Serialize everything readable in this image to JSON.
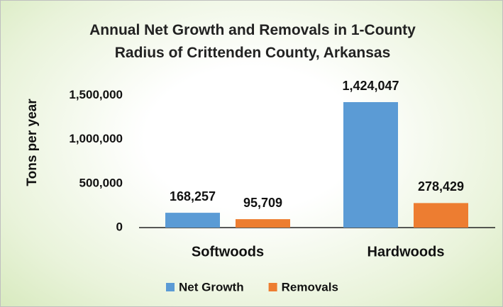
{
  "chart_data": {
    "type": "bar",
    "title": "Annual Net Growth and Removals in 1-County Radius of Crittenden County, Arkansas",
    "y_label": "Tons per year",
    "categories": [
      "Softwoods",
      "Hardwoods"
    ],
    "series": [
      {
        "name": "Net Growth",
        "color": "#5b9bd5",
        "values": [
          168257,
          1424047
        ],
        "value_labels": [
          "168,257",
          "1,424,047"
        ]
      },
      {
        "name": "Removals",
        "color": "#ed7d31",
        "values": [
          95709,
          278429
        ],
        "value_labels": [
          "95,709",
          "278,429"
        ]
      }
    ],
    "ylim": [
      0,
      1500000
    ],
    "yticks": [
      0,
      {
        "value": 500000,
        "label": "500,000"
      },
      {
        "value": 1000000,
        "label": "1,000,000"
      },
      {
        "value": 1500000,
        "label": "1,500,000"
      }
    ],
    "grid": false,
    "legend": "bottom"
  }
}
